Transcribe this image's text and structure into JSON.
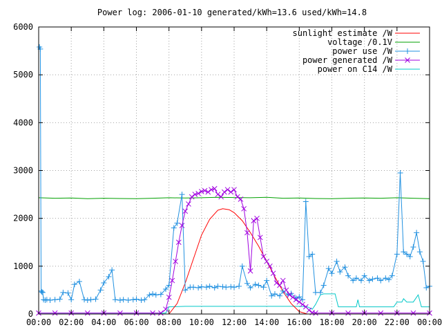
{
  "colors": {
    "sunlight": "#ff0000",
    "voltage": "#00a000",
    "power_use": "#2090e0",
    "power_generated": "#a000e0",
    "power_c14": "#00c8c8",
    "grid": "#a0a0a0",
    "axis": "#000000"
  },
  "chart_data": {
    "type": "line",
    "title": "Power log: 2006-01-10 generated/kWh=13.6 used/kWh=14.8",
    "xlabel": "",
    "ylabel": "",
    "x_unit": "hours",
    "xlim": [
      0,
      24
    ],
    "ylim": [
      0,
      6000
    ],
    "grid": true,
    "legend_position": "top-right",
    "x_tick_labels": [
      "00:00",
      "02:00",
      "04:00",
      "06:00",
      "08:00",
      "10:00",
      "12:00",
      "14:00",
      "16:00",
      "18:00",
      "20:00",
      "22:00",
      "00:00"
    ],
    "y_tick_labels": [
      "0",
      "1000",
      "2000",
      "3000",
      "4000",
      "5000",
      "6000"
    ],
    "series": [
      {
        "key": "sunlight",
        "name": "sunlight estimate /W",
        "style": "line",
        "x": [
          8.0,
          8.5,
          9.0,
          9.5,
          10.0,
          10.5,
          11.0,
          11.3,
          11.7,
          12.0,
          12.5,
          13.0,
          13.5,
          14.0,
          14.5,
          15.0,
          15.5,
          16.0,
          16.5
        ],
        "values": [
          0,
          220,
          650,
          1150,
          1650,
          1980,
          2170,
          2200,
          2180,
          2120,
          1950,
          1700,
          1420,
          1100,
          780,
          470,
          220,
          50,
          0
        ]
      },
      {
        "key": "voltage",
        "name": "voltage /0.1V",
        "style": "line",
        "x": [
          0,
          1,
          2,
          3,
          4,
          5,
          6,
          7,
          8,
          9,
          10,
          11,
          12,
          13,
          14,
          15,
          16,
          17,
          18,
          19,
          20,
          21,
          22,
          23,
          24
        ],
        "values": [
          2430,
          2420,
          2425,
          2410,
          2420,
          2415,
          2410,
          2420,
          2430,
          2425,
          2430,
          2440,
          2435,
          2430,
          2440,
          2420,
          2425,
          2415,
          2410,
          2420,
          2425,
          2420,
          2430,
          2420,
          2410
        ]
      },
      {
        "key": "power_use",
        "name": "power use /W",
        "style": "linespoints-plus",
        "x": [
          0.05,
          0.1,
          0.15,
          0.2,
          0.25,
          0.3,
          0.4,
          0.5,
          0.7,
          1.0,
          1.3,
          1.5,
          1.8,
          2.0,
          2.2,
          2.5,
          2.8,
          3.0,
          3.2,
          3.5,
          3.8,
          4.0,
          4.3,
          4.5,
          4.7,
          5.0,
          5.2,
          5.5,
          5.8,
          6.0,
          6.3,
          6.5,
          6.8,
          7.0,
          7.2,
          7.5,
          7.8,
          8.0,
          8.3,
          8.5,
          8.8,
          9.0,
          9.3,
          9.5,
          9.8,
          10.0,
          10.3,
          10.5,
          10.8,
          11.0,
          11.3,
          11.5,
          11.8,
          12.0,
          12.3,
          12.5,
          12.8,
          13.0,
          13.3,
          13.5,
          13.8,
          14.0,
          14.3,
          14.5,
          14.8,
          15.0,
          15.3,
          15.5,
          15.8,
          16.0,
          16.2,
          16.4,
          16.6,
          16.8,
          17.0,
          17.3,
          17.5,
          17.8,
          18.0,
          18.3,
          18.5,
          18.8,
          19.0,
          19.3,
          19.5,
          19.8,
          20.0,
          20.3,
          20.5,
          20.8,
          21.0,
          21.3,
          21.5,
          21.7,
          22.0,
          22.2,
          22.4,
          22.6,
          22.8,
          23.0,
          23.2,
          23.4,
          23.6,
          23.8,
          24.0
        ],
        "values": [
          5580,
          5540,
          480,
          460,
          450,
          300,
          290,
          300,
          290,
          300,
          310,
          450,
          440,
          300,
          620,
          680,
          300,
          290,
          300,
          310,
          500,
          650,
          780,
          920,
          300,
          290,
          300,
          290,
          300,
          310,
          290,
          300,
          400,
          420,
          400,
          410,
          520,
          600,
          1800,
          1900,
          2500,
          500,
          560,
          560,
          550,
          570,
          560,
          580,
          550,
          580,
          570,
          560,
          570,
          560,
          580,
          1000,
          640,
          550,
          620,
          600,
          560,
          700,
          380,
          420,
          380,
          480,
          400,
          430,
          330,
          360,
          300,
          2350,
          1200,
          1250,
          450,
          450,
          600,
          950,
          850,
          1100,
          880,
          980,
          800,
          700,
          750,
          700,
          800,
          700,
          730,
          750,
          700,
          750,
          720,
          800,
          1250,
          2950,
          1300,
          1250,
          1200,
          1400,
          1700,
          1300,
          1100,
          550,
          580
        ]
      },
      {
        "key": "power_generated",
        "name": "power generated /W",
        "style": "linespoints-x",
        "x": [
          0,
          1,
          2,
          3,
          4,
          5,
          6,
          7,
          7.5,
          7.8,
          8.0,
          8.2,
          8.4,
          8.6,
          8.8,
          9.0,
          9.2,
          9.4,
          9.6,
          9.8,
          10.0,
          10.2,
          10.4,
          10.6,
          10.8,
          11.0,
          11.2,
          11.4,
          11.6,
          11.8,
          12.0,
          12.2,
          12.4,
          12.6,
          12.8,
          13.0,
          13.2,
          13.4,
          13.6,
          13.8,
          14.0,
          14.2,
          14.4,
          14.6,
          14.8,
          15.0,
          15.2,
          15.4,
          15.6,
          15.8,
          16.0,
          16.2,
          16.4,
          16.6,
          16.8,
          17.0,
          18,
          19,
          20,
          21,
          22,
          23,
          24
        ],
        "values": [
          20,
          20,
          20,
          20,
          20,
          20,
          20,
          20,
          20,
          100,
          350,
          700,
          1100,
          1500,
          1850,
          2150,
          2300,
          2450,
          2500,
          2520,
          2560,
          2580,
          2550,
          2600,
          2620,
          2500,
          2450,
          2550,
          2600,
          2550,
          2600,
          2450,
          2400,
          2200,
          1700,
          900,
          1950,
          2000,
          1600,
          1200,
          1100,
          1000,
          850,
          650,
          600,
          700,
          500,
          400,
          350,
          300,
          250,
          200,
          150,
          80,
          30,
          20,
          20,
          20,
          20,
          20,
          20,
          20,
          20
        ]
      },
      {
        "key": "power_c14",
        "name": "power on C14 /W",
        "style": "line",
        "x": [
          0,
          1,
          2,
          3,
          4,
          5,
          6,
          7,
          7.8,
          8.0,
          9,
          10,
          11,
          12,
          13,
          14,
          15,
          16,
          16.5,
          16.8,
          17.0,
          17.3,
          17.5,
          18.2,
          18.4,
          18.6,
          19.0,
          19.5,
          19.6,
          19.7,
          20,
          21,
          21.8,
          22.0,
          22.3,
          22.4,
          22.6,
          23.0,
          23.3,
          23.5,
          24
        ],
        "values": [
          20,
          20,
          20,
          20,
          20,
          20,
          20,
          20,
          20,
          150,
          160,
          160,
          160,
          160,
          160,
          160,
          160,
          160,
          150,
          100,
          200,
          400,
          420,
          420,
          150,
          150,
          150,
          150,
          300,
          150,
          150,
          150,
          150,
          250,
          250,
          320,
          250,
          250,
          400,
          150,
          150
        ]
      }
    ]
  }
}
